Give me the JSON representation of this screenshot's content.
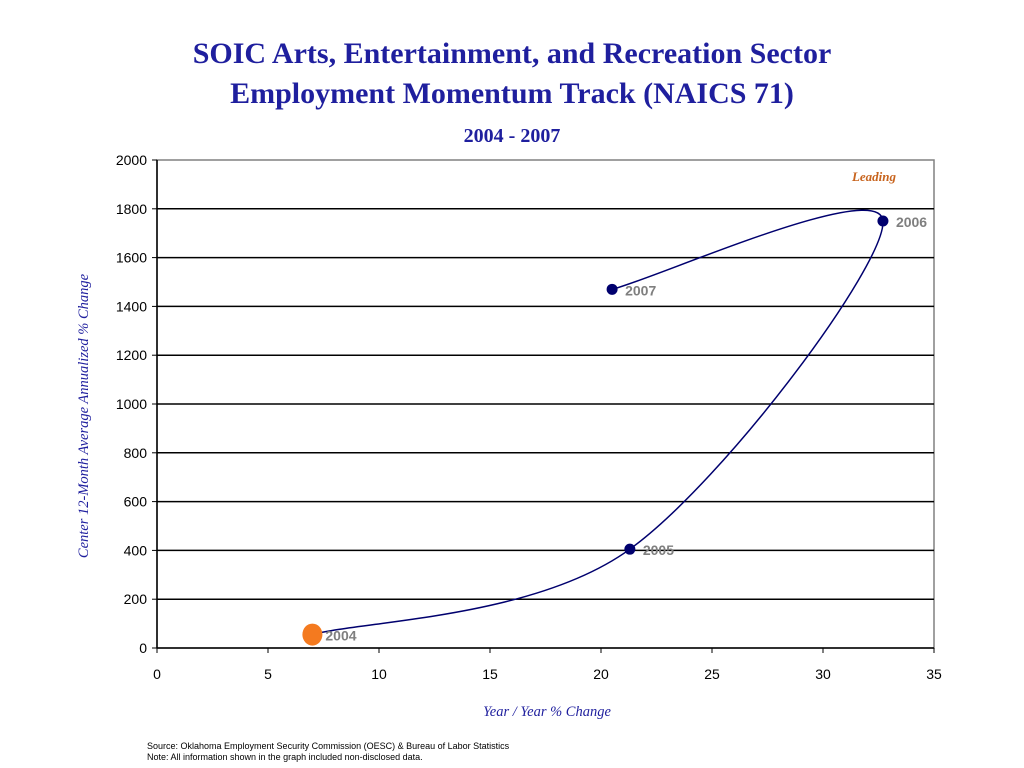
{
  "chart_data": {
    "type": "line",
    "title_line1": "SOIC Arts, Entertainment, and Recreation Sector",
    "title_line2": "Employment Momentum Track (NAICS 71)",
    "subtitle": "2004 - 2007",
    "xlabel": "Year / Year % Change",
    "ylabel": "Center 12-Month Average Annualized % Change",
    "xlim": [
      0,
      35
    ],
    "ylim": [
      0,
      2000
    ],
    "x_ticks": [
      0,
      5,
      10,
      15,
      20,
      25,
      30,
      35
    ],
    "y_ticks": [
      0,
      200,
      400,
      600,
      800,
      1000,
      1200,
      1400,
      1600,
      1800,
      2000
    ],
    "grid": "horizontal",
    "quadrant_label": "Leading",
    "points": [
      {
        "label": "2004",
        "x": 7.0,
        "y": 55
      },
      {
        "label": "2005",
        "x": 21.3,
        "y": 405
      },
      {
        "label": "2006",
        "x": 32.7,
        "y": 1750
      },
      {
        "label": "2007",
        "x": 20.5,
        "y": 1470
      }
    ],
    "highlight_point": "2004",
    "colors": {
      "line": "#00006e",
      "marker": "#00006e",
      "highlight": "#f47a1f",
      "point_label": "#7f7f7f",
      "quadrant_label": "#c8641e",
      "title": "#1f1f9e",
      "frame": "#808080"
    }
  },
  "footer": {
    "source": "Source:  Oklahoma Employment Security Commission (OESC) & Bureau of Labor Statistics",
    "note": "Note: All information shown in the graph included non-disclosed data."
  }
}
